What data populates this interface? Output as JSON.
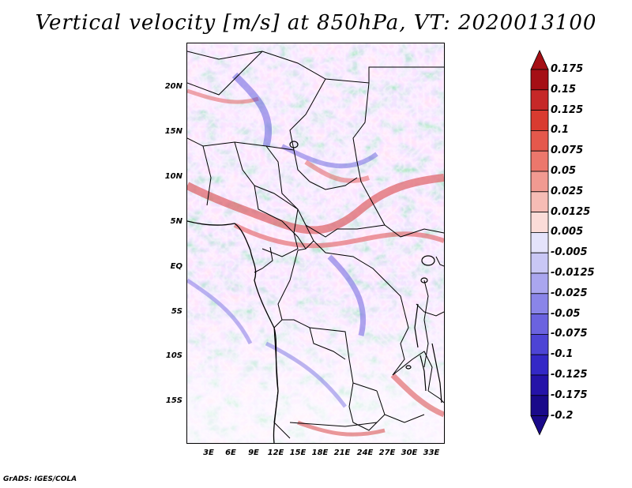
{
  "map": {
    "title": "Vertical velocity [m/s] at 850hPa, VT: 2020013100",
    "variable": "Vertical velocity",
    "units": "m/s",
    "level": "850hPa",
    "valid_time": "2020013100",
    "lat_labels": [
      "20N",
      "15N",
      "10N",
      "5N",
      "EQ",
      "5S",
      "10S",
      "15S"
    ],
    "lon_labels": [
      "3E",
      "6E",
      "9E",
      "12E",
      "15E",
      "18E",
      "21E",
      "24E",
      "27E",
      "30E",
      "33E"
    ],
    "colorbar": {
      "levels": [
        "0.175",
        "0.15",
        "0.125",
        "0.1",
        "0.075",
        "0.05",
        "0.025",
        "0.0125",
        "0.005",
        "-0.005",
        "-0.0125",
        "-0.025",
        "-0.05",
        "-0.075",
        "-0.1",
        "-0.125",
        "-0.175",
        "-0.2"
      ],
      "colors": [
        "#a50f15",
        "#c62828",
        "#d93b30",
        "#e5584c",
        "#ec776c",
        "#f19a91",
        "#f6bcb5",
        "#fbdcd8",
        "#ffffff",
        "#e4e3fb",
        "#c9c7f5",
        "#aaa6ef",
        "#8a85e8",
        "#6b63df",
        "#4d44d5",
        "#3428c6",
        "#2513a8",
        "#1a0a8a"
      ]
    },
    "credit": "GrADS: IGES/COLA"
  }
}
